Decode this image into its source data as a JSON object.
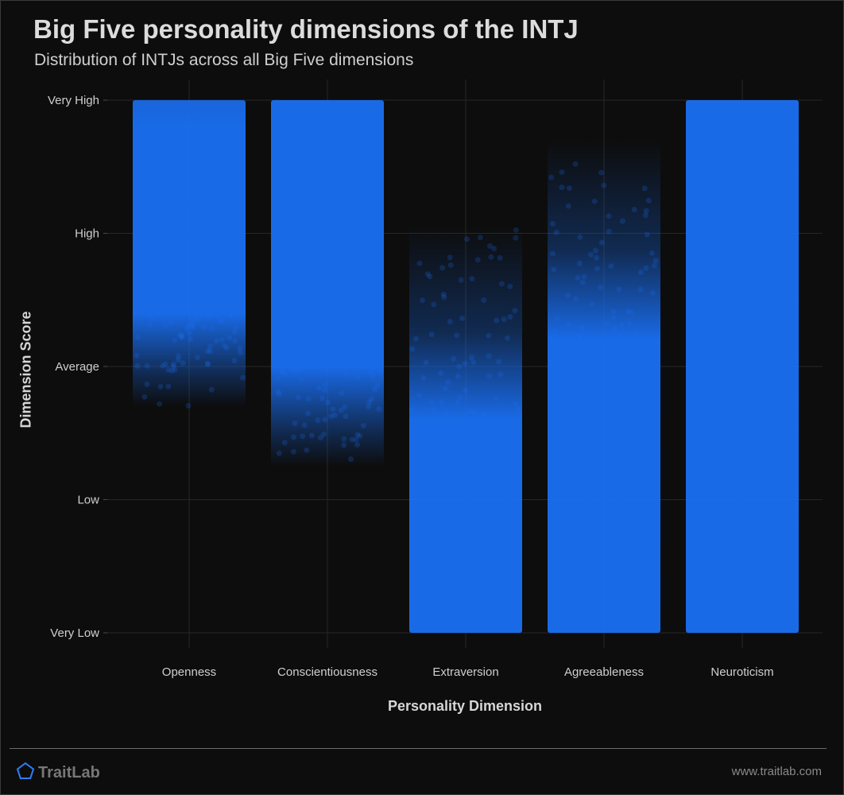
{
  "header": {
    "title": "Big Five personality dimensions of the INTJ",
    "subtitle": "Distribution of INTJs across all Big Five dimensions"
  },
  "footer": {
    "brand": "TraitLab",
    "brand_icon": "pentagon-logo-icon",
    "url": "www.traitlab.com"
  },
  "colors": {
    "background": "#0d0d0d",
    "point": "#1a6ff2",
    "grid": "#262626",
    "text": "#d8d8d8"
  },
  "chart_data": {
    "type": "scatter",
    "title": "Big Five personality dimensions of the INTJ",
    "subtitle": "Distribution of INTJs across all Big Five dimensions",
    "xlabel": "Personality Dimension",
    "ylabel": "Dimension Score",
    "categories": [
      "Openness",
      "Conscientiousness",
      "Extraversion",
      "Agreeableness",
      "Neuroticism"
    ],
    "y_ticks": [
      "Very Low",
      "Low",
      "Average",
      "High",
      "Very High"
    ],
    "ylim": [
      0,
      4
    ],
    "grid": true,
    "series": [
      {
        "category": "Openness",
        "dense_range": [
          2.4,
          3.8
        ],
        "full_range": [
          1.7,
          4.0
        ]
      },
      {
        "category": "Conscientiousness",
        "dense_range": [
          2.0,
          4.0
        ],
        "full_range": [
          1.25,
          4.0
        ]
      },
      {
        "category": "Extraversion",
        "dense_range": [
          0.0,
          1.6
        ],
        "full_range": [
          0.0,
          3.05
        ]
      },
      {
        "category": "Agreeableness",
        "dense_range": [
          0.0,
          2.2
        ],
        "full_range": [
          0.0,
          3.7
        ]
      },
      {
        "category": "Neuroticism",
        "dense_range": [
          0.0,
          4.0
        ],
        "full_range": [
          0.0,
          4.0
        ]
      }
    ]
  }
}
